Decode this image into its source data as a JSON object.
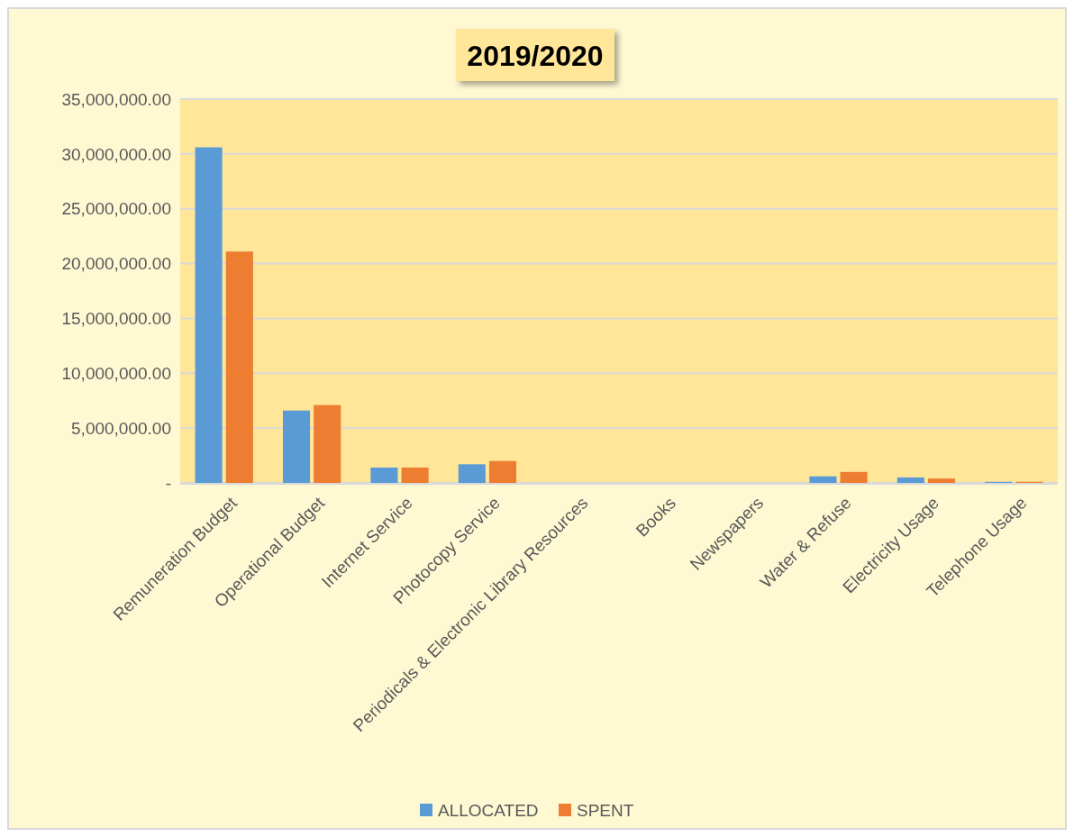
{
  "chart_data": {
    "type": "bar",
    "title": "2019/2020",
    "categories": [
      "Remuneration Budget",
      "Operational Budget",
      "Internet Service",
      "Photocopy Service",
      "Periodicals & Electronic Library Resources",
      "Books",
      "Newspapers",
      "Water & Refuse",
      "Electricity Usage",
      "Telephone Usage"
    ],
    "series": [
      {
        "name": "ALLOCATED",
        "color": "#5b9bd5",
        "values": [
          30600000,
          6600000,
          1400000,
          1700000,
          0,
          0,
          0,
          600000,
          500000,
          100000
        ]
      },
      {
        "name": "SPENT",
        "color": "#ed7d31",
        "values": [
          21100000,
          7100000,
          1400000,
          2000000,
          0,
          0,
          0,
          1000000,
          400000,
          100000
        ]
      }
    ],
    "ylim": [
      0,
      35000000
    ],
    "yticks": [
      {
        "value": 0,
        "label": "-"
      },
      {
        "value": 5000000,
        "label": "5,000,000.00"
      },
      {
        "value": 10000000,
        "label": "10,000,000.00"
      },
      {
        "value": 15000000,
        "label": "15,000,000.00"
      },
      {
        "value": 20000000,
        "label": "20,000,000.00"
      },
      {
        "value": 25000000,
        "label": "25,000,000.00"
      },
      {
        "value": 30000000,
        "label": "30,000,000.00"
      },
      {
        "value": 35000000,
        "label": "35,000,000.00"
      }
    ],
    "grid": "y",
    "legend": "bottom"
  }
}
